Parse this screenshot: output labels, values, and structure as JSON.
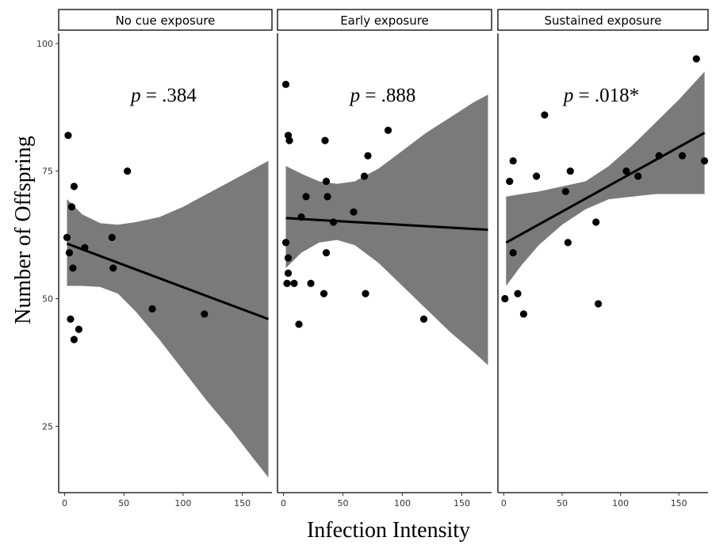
{
  "chart_data": {
    "type": "scatter",
    "xlabel": "Infection Intensity",
    "ylabel": "Number of Offspring",
    "xlim": [
      -5,
      175
    ],
    "ylim": [
      12,
      102
    ],
    "x_ticks": [
      0,
      50,
      100,
      150
    ],
    "y_ticks": [
      25,
      50,
      75,
      100
    ],
    "grid": false,
    "point_color": "#000000",
    "line_color": "#000000",
    "ribbon_color": "#7a7a7a",
    "panels": [
      {
        "label": "No cue exposure",
        "p_prefix": "p",
        "p_value": " = .384",
        "points": [
          {
            "x": 3,
            "y": 82
          },
          {
            "x": 8,
            "y": 72
          },
          {
            "x": 6,
            "y": 68
          },
          {
            "x": 53,
            "y": 75
          },
          {
            "x": 2,
            "y": 62
          },
          {
            "x": 17,
            "y": 60
          },
          {
            "x": 40,
            "y": 62
          },
          {
            "x": 4,
            "y": 59
          },
          {
            "x": 7,
            "y": 56
          },
          {
            "x": 41,
            "y": 56
          },
          {
            "x": 74,
            "y": 48
          },
          {
            "x": 118,
            "y": 47
          },
          {
            "x": 5,
            "y": 46
          },
          {
            "x": 12,
            "y": 44
          },
          {
            "x": 8,
            "y": 42
          }
        ],
        "fit": {
          "x": [
            2,
            172
          ],
          "y": [
            60.8,
            46.0
          ]
        },
        "ribbon": {
          "x": [
            2,
            15,
            30,
            45,
            60,
            80,
            100,
            120,
            140,
            160,
            172
          ],
          "lower": [
            52.5,
            52.5,
            52.3,
            51.0,
            47.5,
            42.0,
            36.0,
            30.0,
            24.5,
            18.5,
            15.0
          ],
          "upper": [
            69.5,
            66.5,
            64.8,
            64.5,
            65.0,
            66.0,
            68.0,
            70.5,
            73.0,
            75.5,
            77.0
          ]
        }
      },
      {
        "label": "Early exposure",
        "p_prefix": "p",
        "p_value": " = .888",
        "points": [
          {
            "x": 2,
            "y": 92
          },
          {
            "x": 4,
            "y": 82
          },
          {
            "x": 5,
            "y": 81
          },
          {
            "x": 35,
            "y": 81
          },
          {
            "x": 88,
            "y": 83
          },
          {
            "x": 71,
            "y": 78
          },
          {
            "x": 68,
            "y": 74
          },
          {
            "x": 36,
            "y": 73
          },
          {
            "x": 19,
            "y": 70
          },
          {
            "x": 37,
            "y": 70
          },
          {
            "x": 59,
            "y": 67
          },
          {
            "x": 15,
            "y": 66
          },
          {
            "x": 42,
            "y": 65
          },
          {
            "x": 2,
            "y": 61
          },
          {
            "x": 36,
            "y": 59
          },
          {
            "x": 4,
            "y": 58
          },
          {
            "x": 4,
            "y": 55
          },
          {
            "x": 3,
            "y": 53
          },
          {
            "x": 9,
            "y": 53
          },
          {
            "x": 23,
            "y": 53
          },
          {
            "x": 34,
            "y": 51
          },
          {
            "x": 69,
            "y": 51
          },
          {
            "x": 13,
            "y": 45
          },
          {
            "x": 118,
            "y": 46
          }
        ],
        "fit": {
          "x": [
            2,
            172
          ],
          "y": [
            65.8,
            63.5
          ]
        },
        "ribbon": {
          "x": [
            2,
            15,
            30,
            45,
            60,
            80,
            100,
            120,
            140,
            160,
            172
          ],
          "lower": [
            56.0,
            59.0,
            61.0,
            61.5,
            60.5,
            57.0,
            52.5,
            48.0,
            43.5,
            39.5,
            37.0
          ],
          "upper": [
            76.0,
            74.5,
            73.0,
            72.5,
            73.0,
            75.5,
            79.0,
            82.5,
            85.5,
            88.5,
            90.0
          ]
        }
      },
      {
        "label": "Sustained exposure",
        "p_prefix": "p",
        "p_value": " = .018*",
        "points": [
          {
            "x": 165,
            "y": 97
          },
          {
            "x": 35,
            "y": 86
          },
          {
            "x": 8,
            "y": 77
          },
          {
            "x": 172,
            "y": 77
          },
          {
            "x": 153,
            "y": 78
          },
          {
            "x": 133,
            "y": 78
          },
          {
            "x": 57,
            "y": 75
          },
          {
            "x": 105,
            "y": 75
          },
          {
            "x": 28,
            "y": 74
          },
          {
            "x": 115,
            "y": 74
          },
          {
            "x": 5,
            "y": 73
          },
          {
            "x": 53,
            "y": 71
          },
          {
            "x": 79,
            "y": 65
          },
          {
            "x": 55,
            "y": 61
          },
          {
            "x": 8,
            "y": 59
          },
          {
            "x": 12,
            "y": 51
          },
          {
            "x": 1,
            "y": 50
          },
          {
            "x": 81,
            "y": 49
          },
          {
            "x": 17,
            "y": 47
          }
        ],
        "fit": {
          "x": [
            2,
            172
          ],
          "y": [
            61.0,
            82.5
          ]
        },
        "ribbon": {
          "x": [
            2,
            15,
            30,
            50,
            70,
            90,
            110,
            130,
            150,
            172
          ],
          "lower": [
            52.5,
            56.5,
            60.5,
            64.5,
            67.5,
            69.5,
            70.0,
            70.5,
            70.5,
            70.5
          ],
          "upper": [
            70.0,
            70.5,
            71.0,
            72.0,
            73.0,
            76.0,
            80.0,
            84.5,
            89.0,
            94.5
          ]
        }
      }
    ]
  }
}
